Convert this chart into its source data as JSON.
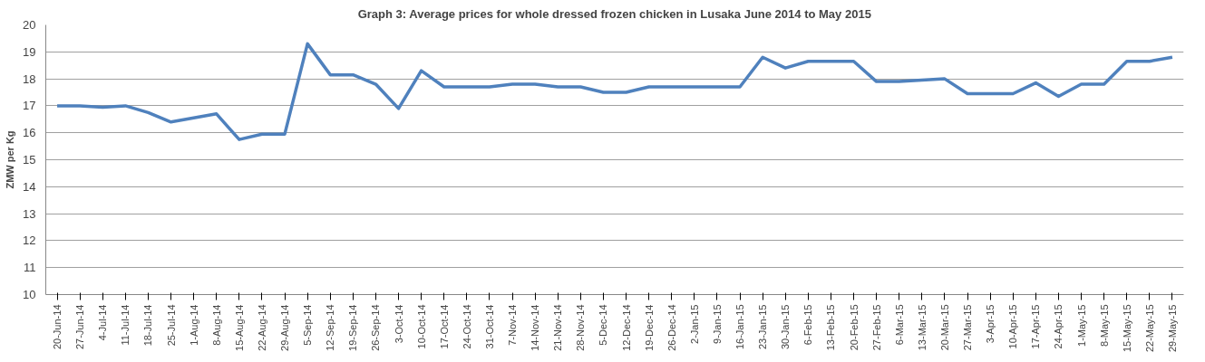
{
  "chart_data": {
    "type": "line",
    "title": "Graph 3: Average prices for whole dressed frozen chicken in Lusaka June 2014 to May 2015",
    "ylabel": "ZMW per Kg",
    "categories": [
      "20-Jun-14",
      "27-Jun-14",
      "4-Jul-14",
      "11-Jul-14",
      "18-Jul-14",
      "25-Jul-14",
      "1-Aug-14",
      "8-Aug-14",
      "15-Aug-14",
      "22-Aug-14",
      "29-Aug-14",
      "5-Sep-14",
      "12-Sep-14",
      "19-Sep-14",
      "26-Sep-14",
      "3-Oct-14",
      "10-Oct-14",
      "17-Oct-14",
      "24-Oct-14",
      "31-Oct-14",
      "7-Nov-14",
      "14-Nov-14",
      "21-Nov-14",
      "28-Nov-14",
      "5-Dec-14",
      "12-Dec-14",
      "19-Dec-14",
      "26-Dec-14",
      "2-Jan-15",
      "9-Jan-15",
      "16-Jan-15",
      "23-Jan-15",
      "30-Jan-15",
      "6-Feb-15",
      "13-Feb-15",
      "20-Feb-15",
      "27-Feb-15",
      "6-Mar-15",
      "13-Mar-15",
      "20-Mar-15",
      "27-Mar-15",
      "3-Apr-15",
      "10-Apr-15",
      "17-Apr-15",
      "24-Apr-15",
      "1-May-15",
      "8-May-15",
      "15-May-15",
      "22-May-15",
      "29-May-15"
    ],
    "series": [
      {
        "color": "#4f81bd",
        "values": [
          17.0,
          17.0,
          16.95,
          17.0,
          16.75,
          16.4,
          16.55,
          16.7,
          15.75,
          15.95,
          15.95,
          19.3,
          18.15,
          18.15,
          17.8,
          16.9,
          18.3,
          17.7,
          17.7,
          17.7,
          17.8,
          17.8,
          17.7,
          17.7,
          17.5,
          17.5,
          17.7,
          17.7,
          17.7,
          17.7,
          17.7,
          18.8,
          18.4,
          18.65,
          18.65,
          18.65,
          17.9,
          17.9,
          17.95,
          18.0,
          17.45,
          17.45,
          17.45,
          17.85,
          17.35,
          17.8,
          17.8,
          18.65,
          18.65,
          18.8
        ]
      }
    ],
    "ylim": [
      10,
      20
    ],
    "yticks": [
      10,
      11,
      12,
      13,
      14,
      15,
      16,
      17,
      18,
      19,
      20
    ],
    "grid": "y",
    "marker": "none",
    "line_style": "solid"
  }
}
